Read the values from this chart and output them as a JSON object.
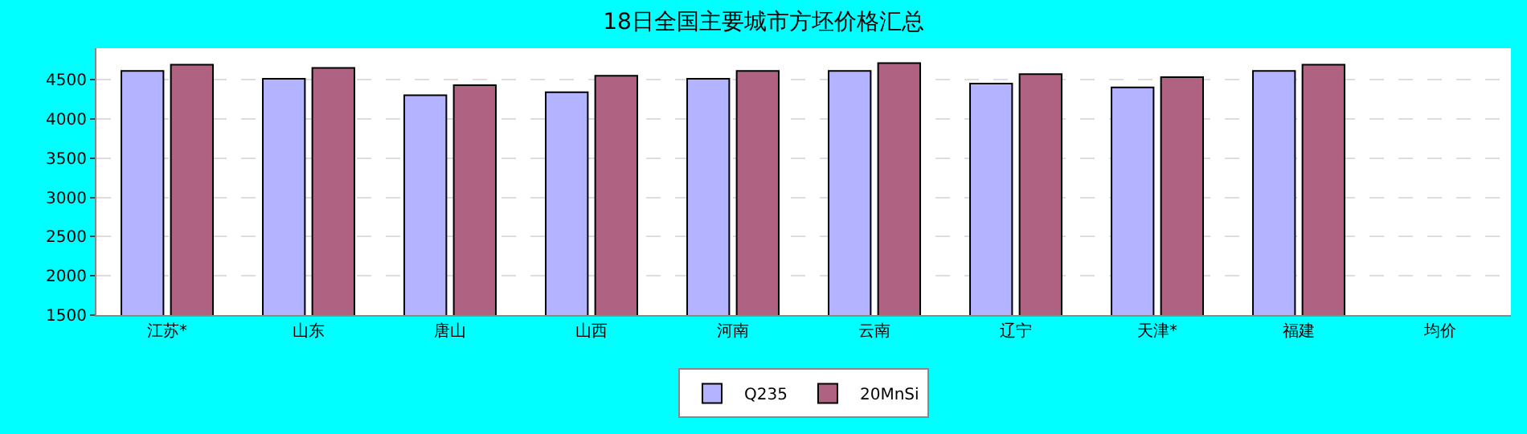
{
  "chart_data": {
    "type": "bar",
    "title": "18日全国主要城市方坯价格汇总",
    "categories": [
      "江苏*",
      "山东",
      "唐山",
      "山西",
      "河南",
      "云南",
      "辽宁",
      "天津*",
      "福建",
      "均价"
    ],
    "series": [
      {
        "name": "Q235",
        "color": "#b3b3ff",
        "values": [
          4610,
          4510,
          4300,
          4340,
          4510,
          4610,
          4450,
          4400,
          4610,
          null
        ]
      },
      {
        "name": "20MnSi",
        "color": "#b06283",
        "values": [
          4690,
          4650,
          4430,
          4550,
          4610,
          4710,
          4570,
          4530,
          4690,
          null
        ]
      }
    ],
    "ylim": [
      1500,
      4900
    ],
    "yticks": [
      1500,
      2000,
      2500,
      3000,
      3500,
      4000,
      4500
    ],
    "grid": "y",
    "legend": "bottom"
  }
}
